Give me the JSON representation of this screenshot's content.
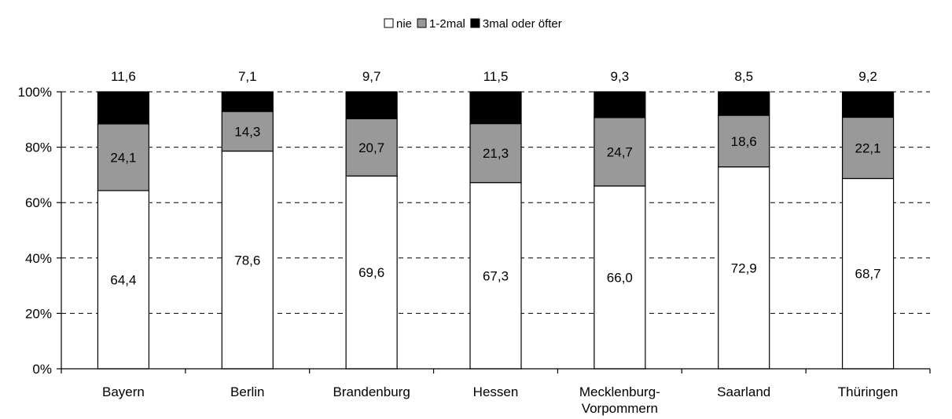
{
  "chart_data": {
    "type": "bar",
    "stacked": true,
    "percent_stacked": true,
    "categories": [
      "Bayern",
      "Berlin",
      "Brandenburg",
      "Hessen",
      "Mecklenburg-\nVorpommern",
      "Saarland",
      "Thüringen"
    ],
    "series": [
      {
        "name": "nie",
        "color": "#ffffff",
        "values": [
          64.4,
          78.6,
          69.6,
          67.3,
          66.0,
          72.9,
          68.7
        ],
        "labels": [
          "64,4",
          "78,6",
          "69,6",
          "67,3",
          "66,0",
          "72,9",
          "68,7"
        ]
      },
      {
        "name": "1-2mal",
        "color": "#999999",
        "values": [
          24.1,
          14.3,
          20.7,
          21.3,
          24.7,
          18.6,
          22.1
        ],
        "labels": [
          "24,1",
          "14,3",
          "20,7",
          "21,3",
          "24,7",
          "18,6",
          "22,1"
        ]
      },
      {
        "name": "3mal oder öfter",
        "color": "#000000",
        "values": [
          11.6,
          7.1,
          9.7,
          11.5,
          9.3,
          8.5,
          9.2
        ],
        "labels": [
          "11,6",
          "7,1",
          "9,7",
          "11,5",
          "9,3",
          "8,5",
          "9,2"
        ]
      }
    ],
    "y_ticks": [
      "0%",
      "20%",
      "40%",
      "60%",
      "80%",
      "100%"
    ],
    "ylim": [
      0,
      100
    ],
    "grid": true,
    "legend_position": "top-center"
  }
}
